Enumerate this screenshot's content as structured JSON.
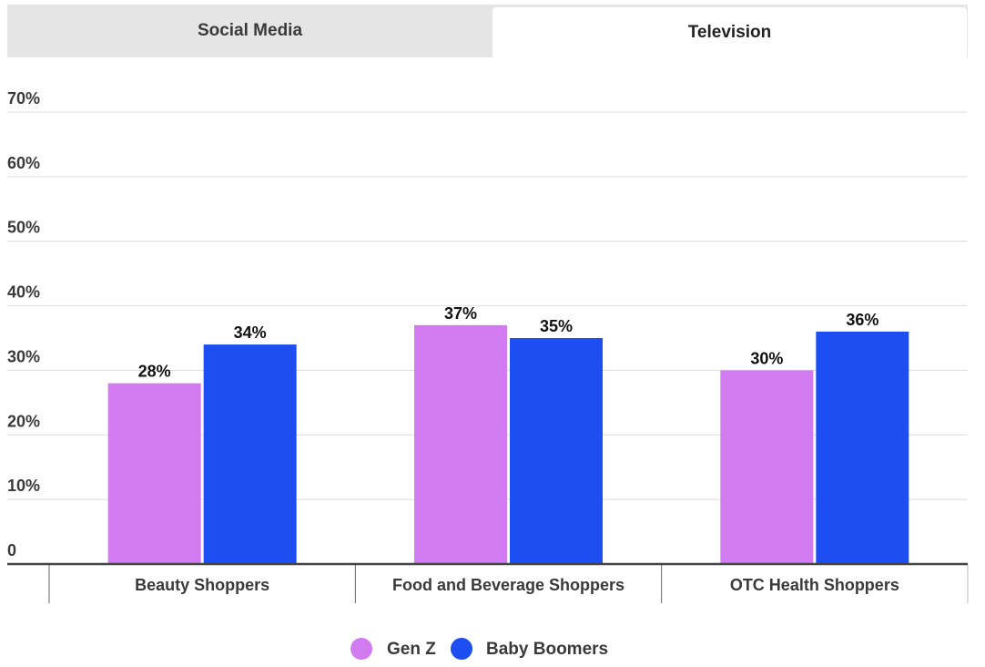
{
  "tabs": [
    {
      "label": "Social Media",
      "active": false
    },
    {
      "label": "Television",
      "active": true
    }
  ],
  "chart_data": {
    "type": "bar",
    "categories": [
      "Beauty Shoppers",
      "Food and Beverage Shoppers",
      "OTC Health Shoppers"
    ],
    "series": [
      {
        "name": "Gen Z",
        "color": "#d27bf0",
        "values": [
          28,
          37,
          30
        ],
        "labels": [
          "28%",
          "37%",
          "30%"
        ]
      },
      {
        "name": "Baby Boomers",
        "color": "#1c4ef2",
        "values": [
          34,
          35,
          36
        ],
        "labels": [
          "34%",
          "35%",
          "36%"
        ]
      }
    ],
    "ylim": [
      0,
      70
    ],
    "yticks": [
      0,
      10,
      20,
      30,
      40,
      50,
      60,
      70
    ],
    "ytick_labels": [
      "0",
      "10%",
      "20%",
      "30%",
      "40%",
      "50%",
      "60%",
      "70%"
    ],
    "grid": true,
    "legend": "bottom-center",
    "title": "",
    "xlabel": "",
    "ylabel": ""
  }
}
